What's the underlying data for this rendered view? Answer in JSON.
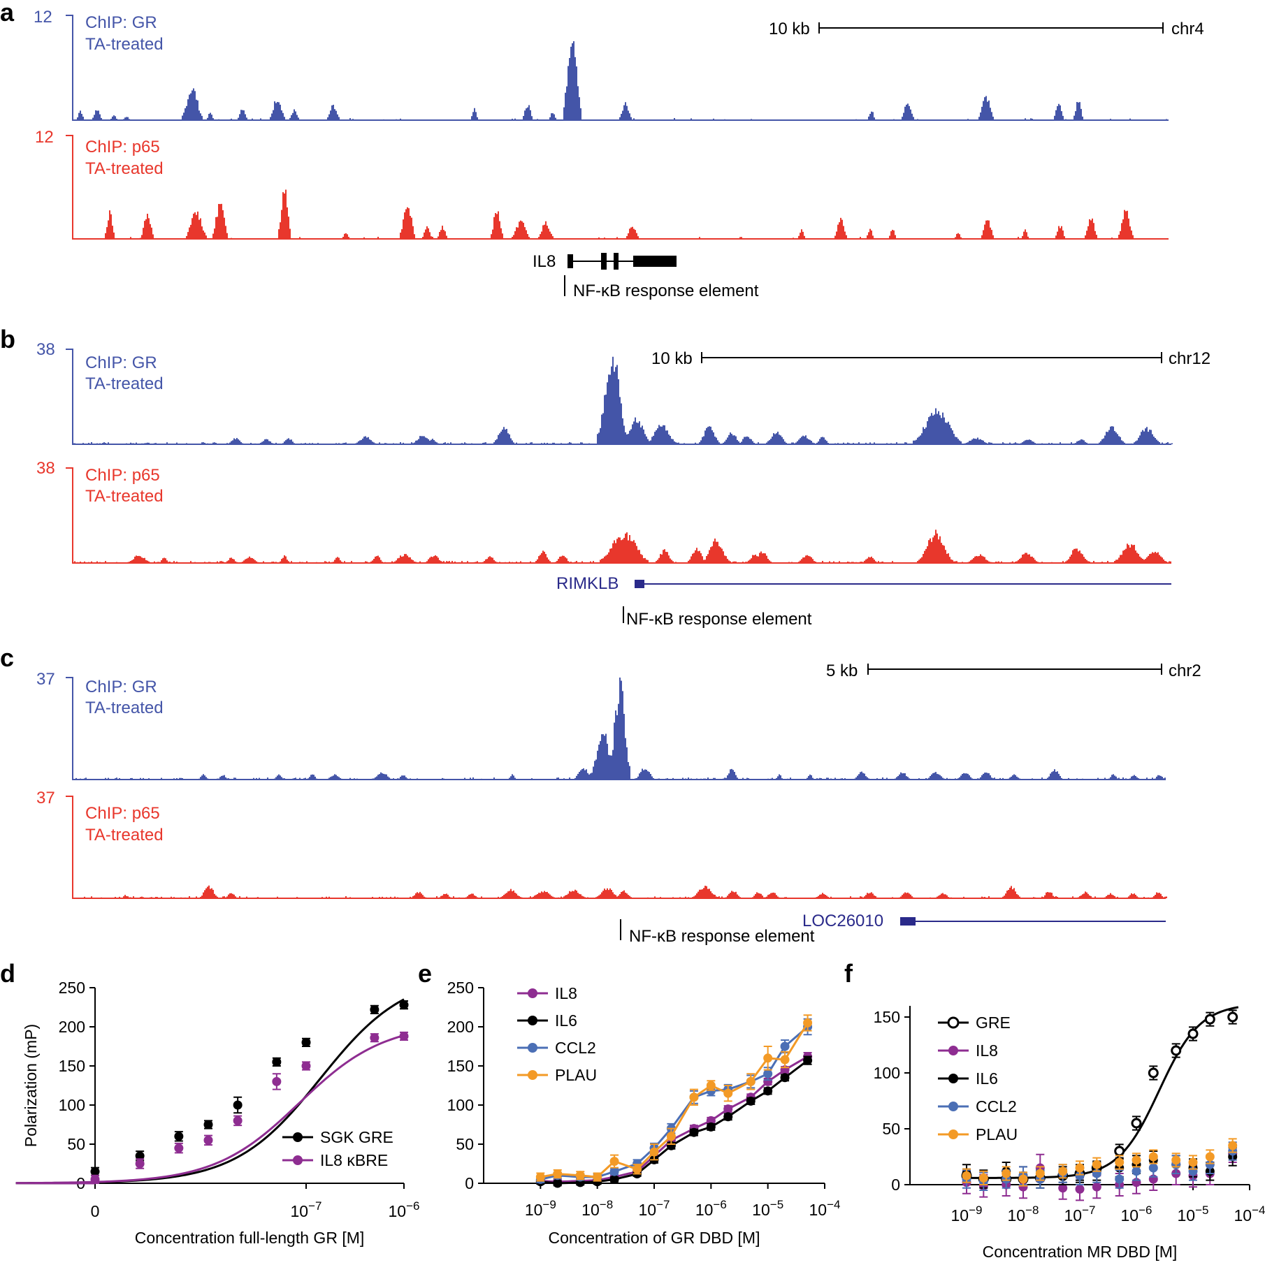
{
  "panels": {
    "a": {
      "label": "a",
      "gr": {
        "max": "12",
        "name": "ChIP: GR",
        "cond": "TA-treated"
      },
      "p65": {
        "max": "12",
        "name": "ChIP: p65",
        "cond": "TA-treated"
      },
      "scale": "10 kb",
      "chrom": "chr4",
      "gene": "IL8",
      "element": "NF-κB response element"
    },
    "b": {
      "label": "b",
      "gr": {
        "max": "38",
        "name": "ChIP: GR",
        "cond": "TA-treated"
      },
      "p65": {
        "max": "38",
        "name": "ChIP: p65",
        "cond": "TA-treated"
      },
      "scale": "10 kb",
      "chrom": "chr12",
      "gene": "RIMKLB",
      "element": "NF-κB response element"
    },
    "c": {
      "label": "c",
      "gr": {
        "max": "37",
        "name": "ChIP: GR",
        "cond": "TA-treated"
      },
      "p65": {
        "max": "37",
        "name": "ChIP: p65",
        "cond": "TA-treated"
      },
      "scale": "5 kb",
      "chrom": "chr2",
      "gene": "LOC26010",
      "element": "NF-κB response element"
    }
  },
  "colors": {
    "gr": "#4455a8",
    "p65": "#e8372c",
    "gene": "#2a2a8a",
    "il8": "#8e2d91",
    "il6": "#000000",
    "ccl2": "#4b6fb5",
    "plau": "#f39a26"
  },
  "chart_data": [
    {
      "panel": "d",
      "type": "scatter",
      "ylabel": "Polarization (mP)",
      "xlabel": "Concentration full-length GR  [M]",
      "y_ticks": [
        "0",
        "50",
        "100",
        "150",
        "200",
        "250"
      ],
      "ylim": [
        0,
        250
      ],
      "x_ticks": [
        {
          "base": "0",
          "exp": ""
        },
        {
          "base": "10",
          "exp": "−7"
        },
        {
          "base": "10",
          "exp": "−6"
        }
      ],
      "xlim": [
        0,
        1e-06
      ],
      "series": [
        {
          "name": "SGK GRE",
          "color": "#000000",
          "x": [
            0,
            2e-09,
            5e-09,
            1e-08,
            2e-08,
            5e-08,
            1e-07,
            5e-07,
            1e-06
          ],
          "y": [
            15,
            35,
            60,
            75,
            100,
            155,
            180,
            222,
            228
          ],
          "err": [
            5,
            6,
            6,
            5,
            10,
            5,
            5,
            5,
            5
          ],
          "fit_bmax": 268,
          "fit_kd": 1.4e-07,
          "fit_offset": 0
        },
        {
          "name": "IL8 κBRE",
          "color": "#8e2d91",
          "x": [
            0,
            2e-09,
            5e-09,
            1e-08,
            2e-08,
            5e-08,
            1e-07,
            5e-07,
            1e-06
          ],
          "y": [
            5,
            25,
            45,
            55,
            80,
            130,
            150,
            186,
            188
          ],
          "err": [
            5,
            6,
            6,
            6,
            6,
            10,
            5,
            5,
            5
          ],
          "fit_bmax": 205,
          "fit_kd": 8.5e-08,
          "fit_offset": 0
        }
      ]
    },
    {
      "panel": "e",
      "type": "scatter",
      "ylabel": "",
      "xlabel": "Concentration of GR DBD [M]",
      "y_ticks": [
        "0",
        "50",
        "100",
        "150",
        "200",
        "250"
      ],
      "ylim": [
        0,
        250
      ],
      "x_ticks": [
        {
          "base": "10",
          "exp": "−9"
        },
        {
          "base": "10",
          "exp": "−8"
        },
        {
          "base": "10",
          "exp": "−7"
        },
        {
          "base": "10",
          "exp": "−6"
        },
        {
          "base": "10",
          "exp": "−5"
        },
        {
          "base": "10",
          "exp": "−4"
        }
      ],
      "xlim_log": [
        -10,
        -4
      ],
      "series": [
        {
          "name": "IL8",
          "color": "#8e2d91",
          "logx": [
            -9,
            -8.7,
            -8.3,
            -8,
            -7.7,
            -7.3,
            -7,
            -6.7,
            -6.3,
            -6,
            -5.7,
            -5.3,
            -5,
            -4.7,
            -4.3
          ],
          "y": [
            3,
            2,
            3,
            4,
            8,
            15,
            35,
            55,
            70,
            80,
            95,
            110,
            130,
            145,
            162
          ],
          "err": [
            3,
            3,
            3,
            3,
            3,
            3,
            4,
            4,
            4,
            4,
            4,
            4,
            4,
            4,
            5
          ]
        },
        {
          "name": "IL6",
          "color": "#000000",
          "logx": [
            -9,
            -8.7,
            -8.3,
            -8,
            -7.7,
            -7.3,
            -7,
            -6.7,
            -6.3,
            -6,
            -5.7,
            -5.3,
            -5,
            -4.7,
            -4.3
          ],
          "y": [
            2,
            0,
            1,
            2,
            5,
            12,
            30,
            48,
            65,
            72,
            85,
            105,
            118,
            135,
            157
          ],
          "err": [
            3,
            3,
            3,
            3,
            3,
            3,
            4,
            4,
            4,
            4,
            4,
            4,
            4,
            4,
            5
          ]
        },
        {
          "name": "CCL2",
          "color": "#4b6fb5",
          "logx": [
            -9,
            -8.7,
            -8.3,
            -8,
            -7.7,
            -7.3,
            -7,
            -6.7,
            -6.3,
            -6,
            -5.7,
            -5.3,
            -5,
            -4.7,
            -4.3
          ],
          "y": [
            5,
            10,
            8,
            8,
            15,
            25,
            45,
            70,
            110,
            118,
            120,
            130,
            140,
            175,
            200
          ],
          "err": [
            4,
            4,
            4,
            4,
            4,
            5,
            6,
            6,
            8,
            6,
            6,
            8,
            8,
            8,
            10
          ]
        },
        {
          "name": "PLAU",
          "color": "#f39a26",
          "logx": [
            -9,
            -8.7,
            -8.3,
            -8,
            -7.7,
            -7.3,
            -7,
            -6.7,
            -6.3,
            -6,
            -5.7,
            -5.3,
            -5,
            -4.7,
            -4.3
          ],
          "y": [
            8,
            12,
            10,
            8,
            28,
            18,
            40,
            60,
            110,
            125,
            115,
            130,
            160,
            158,
            205
          ],
          "err": [
            5,
            5,
            5,
            5,
            8,
            6,
            10,
            10,
            10,
            6,
            10,
            10,
            15,
            10,
            10
          ]
        }
      ]
    },
    {
      "panel": "f",
      "type": "scatter",
      "ylabel": "",
      "xlabel": "Concentration MR DBD [M]",
      "y_ticks": [
        "0",
        "50",
        "100",
        "150"
      ],
      "ylim": [
        0,
        160
      ],
      "x_ticks": [
        {
          "base": "10",
          "exp": "−9"
        },
        {
          "base": "10",
          "exp": "−8"
        },
        {
          "base": "10",
          "exp": "−7"
        },
        {
          "base": "10",
          "exp": "−6"
        },
        {
          "base": "10",
          "exp": "−5"
        },
        {
          "base": "10",
          "exp": "−4"
        }
      ],
      "xlim_log": [
        -10,
        -4
      ],
      "series": [
        {
          "name": "GRE",
          "color": "#000000",
          "open": true,
          "logx": [
            -9,
            -8.7,
            -8.3,
            -8,
            -7.7,
            -7.3,
            -7,
            -6.7,
            -6.3,
            -6,
            -5.7,
            -5.3,
            -5,
            -4.7,
            -4.3
          ],
          "y": [
            8,
            5,
            5,
            5,
            6,
            8,
            10,
            15,
            30,
            55,
            100,
            120,
            135,
            148,
            150
          ],
          "err": [
            6,
            6,
            6,
            6,
            6,
            6,
            6,
            6,
            6,
            6,
            6,
            6,
            6,
            6,
            6
          ],
          "fit_bottom": 6,
          "fit_top": 162,
          "fit_logec50": -5.6,
          "fit_hill": 1.2
        },
        {
          "name": "IL8",
          "color": "#8e2d91",
          "logx": [
            -9,
            -8.7,
            -8.3,
            -8,
            -7.7,
            -7.3,
            -7,
            -6.7,
            -6.3,
            -6,
            -5.7,
            -5.3,
            -5,
            -4.7,
            -4.3
          ],
          "y": [
            2,
            -1,
            0,
            -2,
            15,
            -3,
            -4,
            -2,
            0,
            2,
            5,
            10,
            8,
            10,
            28
          ],
          "err": [
            10,
            10,
            10,
            10,
            12,
            10,
            10,
            10,
            10,
            10,
            10,
            10,
            10,
            10,
            8
          ]
        },
        {
          "name": "IL6",
          "color": "#000000",
          "logx": [
            -9,
            -8.7,
            -8.3,
            -8,
            -7.7,
            -7.3,
            -7,
            -6.7,
            -6.3,
            -6,
            -5.7,
            -5.3,
            -5,
            -4.7,
            -4.3
          ],
          "y": [
            10,
            5,
            12,
            8,
            5,
            8,
            10,
            12,
            15,
            18,
            22,
            18,
            15,
            12,
            25
          ],
          "err": [
            8,
            8,
            8,
            8,
            8,
            8,
            8,
            8,
            8,
            8,
            8,
            8,
            8,
            8,
            8
          ]
        },
        {
          "name": "CCL2",
          "color": "#4b6fb5",
          "logx": [
            -9,
            -8.7,
            -8.3,
            -8,
            -7.7,
            -7.3,
            -7,
            -6.7,
            -6.3,
            -6,
            -5.7,
            -5.3,
            -5,
            -4.7,
            -4.3
          ],
          "y": [
            5,
            3,
            5,
            8,
            5,
            10,
            8,
            10,
            5,
            12,
            15,
            18,
            12,
            18,
            30
          ],
          "err": [
            8,
            8,
            8,
            8,
            8,
            8,
            8,
            8,
            8,
            8,
            8,
            8,
            8,
            8,
            8
          ]
        },
        {
          "name": "PLAU",
          "color": "#f39a26",
          "logx": [
            -9,
            -8.7,
            -8.3,
            -8,
            -7.7,
            -7.3,
            -7,
            -6.7,
            -6.3,
            -6,
            -5.7,
            -5.3,
            -5,
            -4.7,
            -4.3
          ],
          "y": [
            8,
            6,
            10,
            5,
            10,
            12,
            15,
            18,
            20,
            22,
            25,
            22,
            20,
            25,
            35
          ],
          "err": [
            6,
            6,
            6,
            6,
            6,
            6,
            6,
            6,
            6,
            6,
            6,
            6,
            6,
            6,
            6
          ]
        }
      ]
    }
  ]
}
